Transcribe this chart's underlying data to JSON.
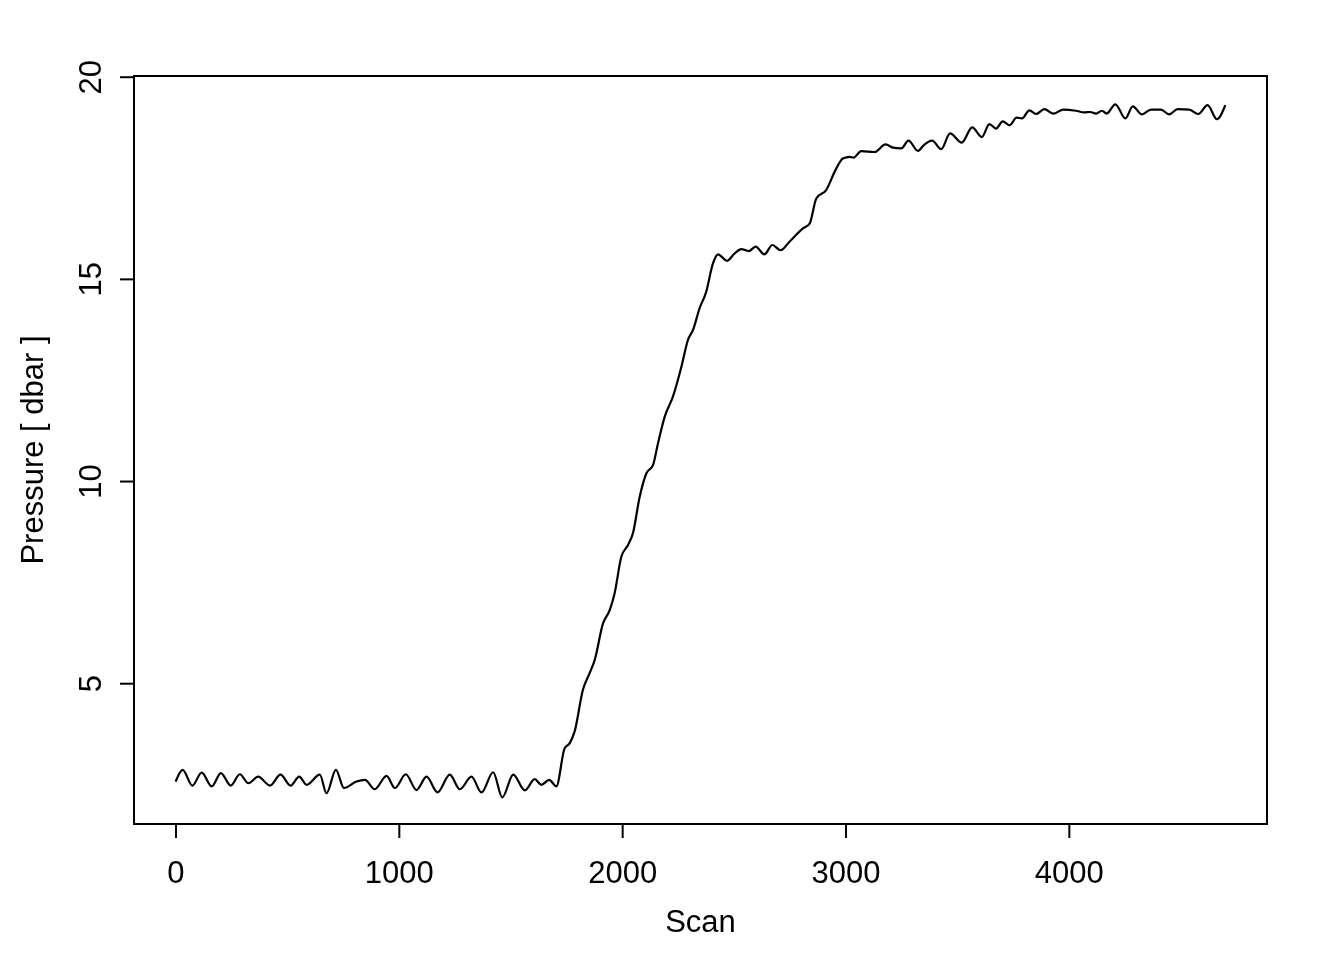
{
  "chart_data": {
    "type": "line",
    "xlabel": "Scan",
    "ylabel": "Pressure [ dbar ]",
    "x": [
      0,
      30,
      73,
      115,
      160,
      201,
      245,
      286,
      324,
      368,
      421,
      468,
      513,
      552,
      585,
      644,
      674,
      716,
      752,
      808,
      846,
      890,
      943,
      980,
      1029,
      1077,
      1122,
      1171,
      1226,
      1271,
      1323,
      1368,
      1420,
      1461,
      1510,
      1562,
      1606,
      1636,
      1671,
      1703,
      1740,
      1763,
      1785,
      1822,
      1852,
      1875,
      1912,
      1942,
      1964,
      1994,
      2024,
      2046,
      2076,
      2106,
      2136,
      2158,
      2188,
      2225,
      2263,
      2292,
      2315,
      2344,
      2374,
      2404,
      2427,
      2467,
      2501,
      2531,
      2565,
      2595,
      2635,
      2670,
      2707,
      2747,
      2807,
      2837,
      2867,
      2911,
      2956,
      2986,
      3016,
      3034,
      3068,
      3128,
      3177,
      3210,
      3247,
      3280,
      3322,
      3352,
      3386,
      3426,
      3466,
      3518,
      3565,
      3608,
      3642,
      3672,
      3702,
      3732,
      3764,
      3788,
      3821,
      3851,
      3888,
      3928,
      3973,
      4030,
      4067,
      4093,
      4120,
      4146,
      4167,
      4206,
      4251,
      4284,
      4325,
      4366,
      4410,
      4447,
      4485,
      4537,
      4577,
      4619,
      4661,
      4697
    ],
    "series": [
      {
        "color": "#000000",
        "values": [
          2.6,
          2.87,
          2.48,
          2.8,
          2.46,
          2.79,
          2.48,
          2.76,
          2.54,
          2.7,
          2.48,
          2.75,
          2.48,
          2.7,
          2.5,
          2.75,
          2.29,
          2.87,
          2.42,
          2.58,
          2.62,
          2.39,
          2.72,
          2.42,
          2.76,
          2.37,
          2.7,
          2.31,
          2.75,
          2.39,
          2.7,
          2.31,
          2.81,
          2.19,
          2.75,
          2.36,
          2.64,
          2.5,
          2.62,
          2.46,
          3.4,
          3.53,
          3.82,
          4.85,
          5.26,
          5.59,
          6.49,
          6.82,
          7.24,
          8.14,
          8.43,
          8.72,
          9.62,
          10.2,
          10.41,
          10.94,
          11.6,
          12.1,
          12.84,
          13.5,
          13.75,
          14.28,
          14.69,
          15.39,
          15.62,
          15.46,
          15.64,
          15.75,
          15.7,
          15.81,
          15.62,
          15.85,
          15.72,
          15.93,
          16.26,
          16.38,
          17.0,
          17.21,
          17.74,
          17.99,
          18.03,
          18.01,
          18.17,
          18.15,
          18.34,
          18.26,
          18.24,
          18.43,
          18.18,
          18.34,
          18.43,
          18.22,
          18.61,
          18.38,
          18.76,
          18.52,
          18.84,
          18.73,
          18.91,
          18.81,
          19.0,
          18.98,
          19.18,
          19.09,
          19.21,
          19.1,
          19.2,
          19.17,
          19.13,
          19.14,
          19.1,
          19.17,
          19.1,
          19.33,
          18.98,
          19.28,
          19.08,
          19.2,
          19.2,
          19.08,
          19.21,
          19.2,
          19.09,
          19.31,
          18.96,
          19.29
        ]
      }
    ],
    "xlim": [
      -188,
      4885
    ],
    "ylim": [
      1.53,
      20.03
    ],
    "xticks": [
      0,
      1000,
      2000,
      3000,
      4000
    ],
    "yticks": [
      5,
      10,
      15,
      20
    ],
    "line_style": "solid"
  }
}
